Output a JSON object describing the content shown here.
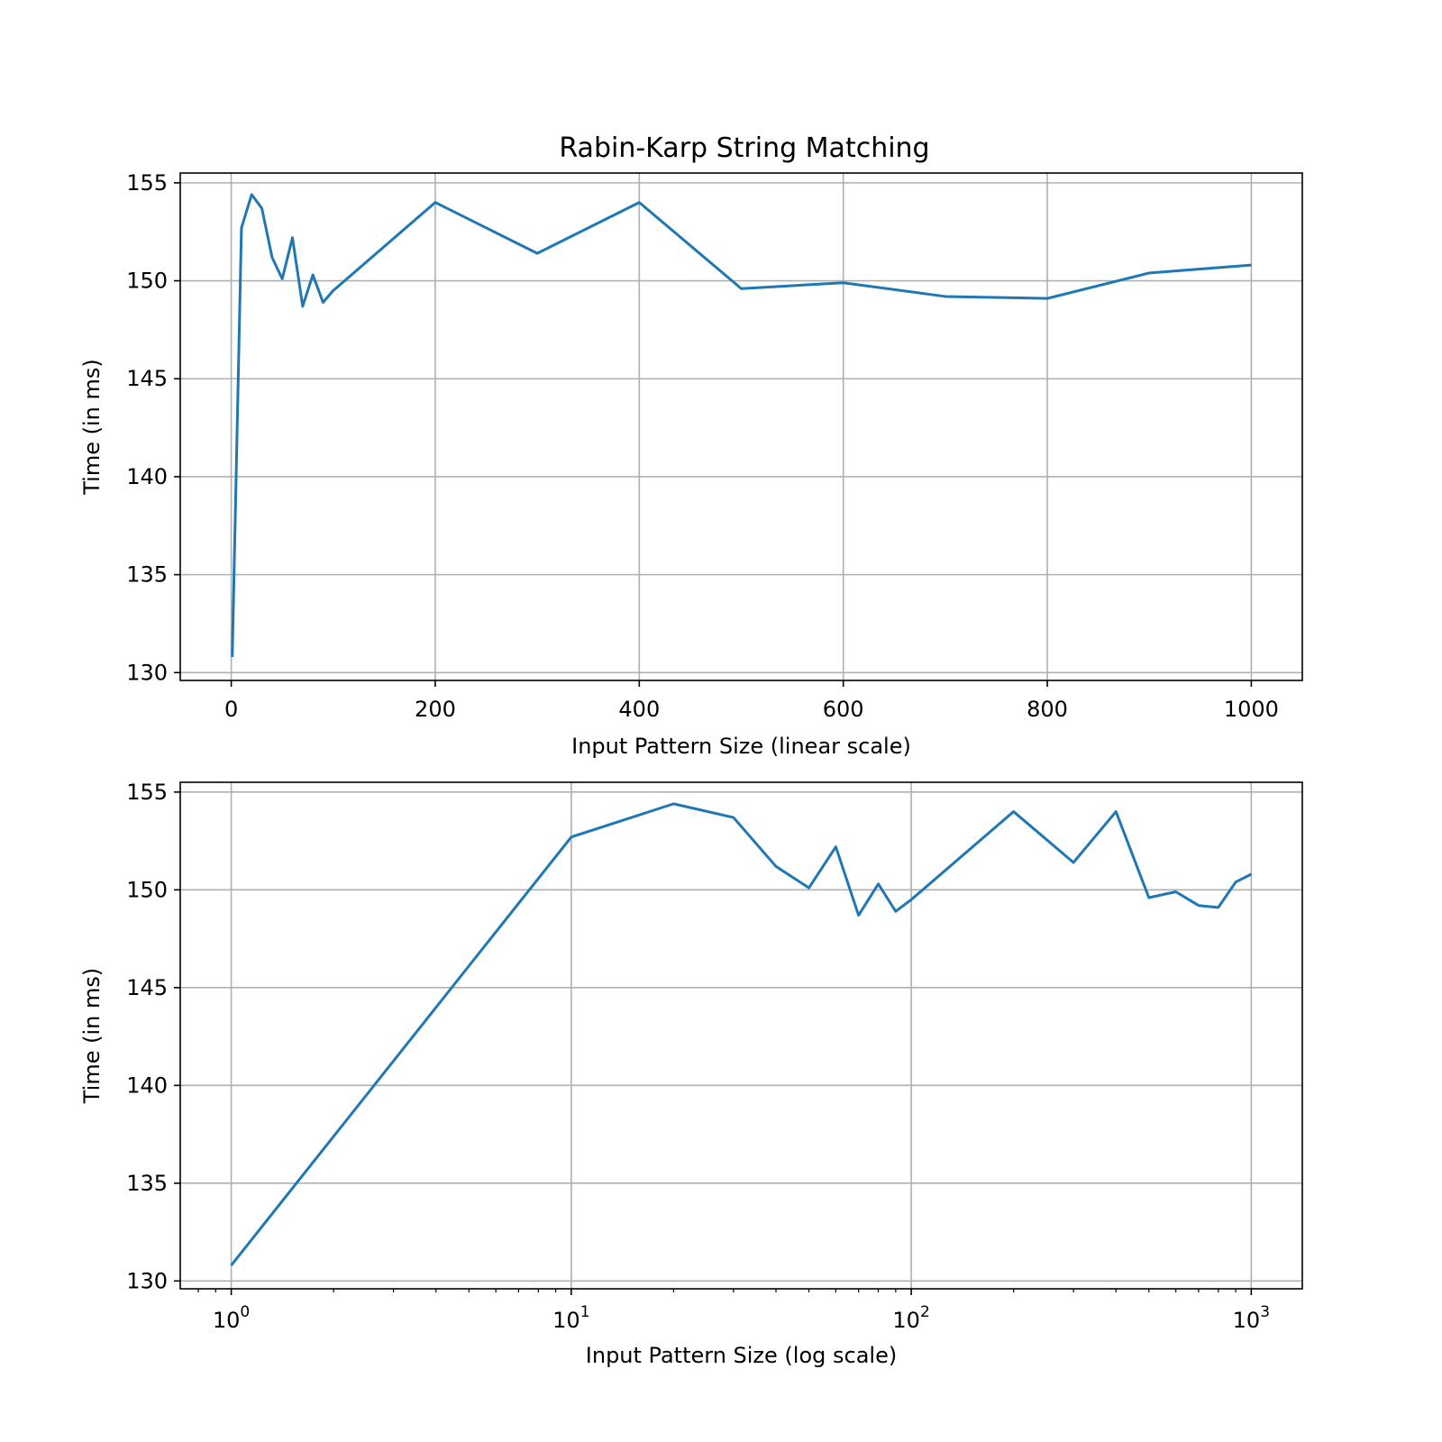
{
  "figure": {
    "title": "Rabin-Karp String Matching"
  },
  "chart_data": [
    {
      "type": "line",
      "title": "Rabin-Karp String Matching",
      "xlabel": "Input Pattern Size (linear scale)",
      "ylabel": "Time (in ms)",
      "xscale": "linear",
      "xlim": [
        -50,
        1050
      ],
      "ylim": [
        129.6,
        155.5
      ],
      "grid": true,
      "xticks": [
        0,
        200,
        400,
        600,
        800,
        1000
      ],
      "xtick_labels": [
        "0",
        "200",
        "400",
        "600",
        "800",
        "1000"
      ],
      "yticks": [
        130,
        135,
        140,
        145,
        150,
        155
      ],
      "ytick_labels": [
        "130",
        "135",
        "140",
        "145",
        "150",
        "155"
      ],
      "color": "#1f77b4",
      "x": [
        1,
        10,
        20,
        30,
        40,
        50,
        60,
        70,
        80,
        90,
        100,
        200,
        300,
        400,
        500,
        600,
        700,
        800,
        900,
        1000
      ],
      "y": [
        130.8,
        152.7,
        154.4,
        153.7,
        151.2,
        150.1,
        152.2,
        148.7,
        150.3,
        148.9,
        149.5,
        154.0,
        151.4,
        154.0,
        149.6,
        149.9,
        149.2,
        149.1,
        150.4,
        150.8
      ]
    },
    {
      "type": "line",
      "xlabel": "Input Pattern Size (log scale)",
      "ylabel": "Time (in ms)",
      "xscale": "log",
      "xlim": [
        0.708,
        1413
      ],
      "ylim": [
        129.6,
        155.5
      ],
      "grid": true,
      "xticks": [
        1,
        10,
        100,
        1000
      ],
      "xtick_labels": [
        {
          "base": "10",
          "exp": "0"
        },
        {
          "base": "10",
          "exp": "1"
        },
        {
          "base": "10",
          "exp": "2"
        },
        {
          "base": "10",
          "exp": "3"
        }
      ],
      "yticks": [
        130,
        135,
        140,
        145,
        150,
        155
      ],
      "ytick_labels": [
        "130",
        "135",
        "140",
        "145",
        "150",
        "155"
      ],
      "color": "#1f77b4",
      "x": [
        1,
        10,
        20,
        30,
        40,
        50,
        60,
        70,
        80,
        90,
        100,
        200,
        300,
        400,
        500,
        600,
        700,
        800,
        900,
        1000
      ],
      "y": [
        130.8,
        152.7,
        154.4,
        153.7,
        151.2,
        150.1,
        152.2,
        148.7,
        150.3,
        148.9,
        149.5,
        154.0,
        151.4,
        154.0,
        149.6,
        149.9,
        149.2,
        149.1,
        150.4,
        150.8
      ]
    }
  ]
}
